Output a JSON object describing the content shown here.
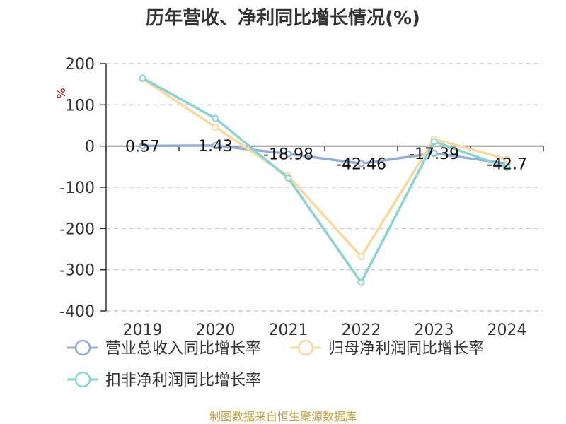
{
  "chart_data": {
    "type": "line",
    "title": "历年营收、净利同比增长情况(%)",
    "ylabel": "%",
    "xlabel": "",
    "categories": [
      "2019",
      "2020",
      "2021",
      "2022",
      "2023",
      "2024"
    ],
    "ylim": [
      -400,
      200
    ],
    "yticks": [
      200,
      100,
      0,
      -100,
      -200,
      -300,
      -400
    ],
    "grid": true,
    "legend_position": "bottom-left",
    "series": [
      {
        "name": "营业总收入同比增长率",
        "color": "#8fadd9",
        "values": [
          0.57,
          1.43,
          -18.98,
          -42.46,
          -17.39,
          -42.7
        ],
        "labels": [
          "0.57",
          "1.43",
          "-18.98",
          "-42.46",
          "-17.39",
          "-42.7"
        ]
      },
      {
        "name": "归母净利润同比增长率",
        "color": "#f9d99a",
        "values": [
          163,
          46,
          -73,
          -268,
          17,
          -32
        ]
      },
      {
        "name": "扣非净利润同比增长率",
        "color": "#88d4d4",
        "values": [
          165,
          67,
          -78,
          -331,
          11,
          -52
        ]
      }
    ]
  },
  "source": "制图数据来自恒生聚源数据库"
}
